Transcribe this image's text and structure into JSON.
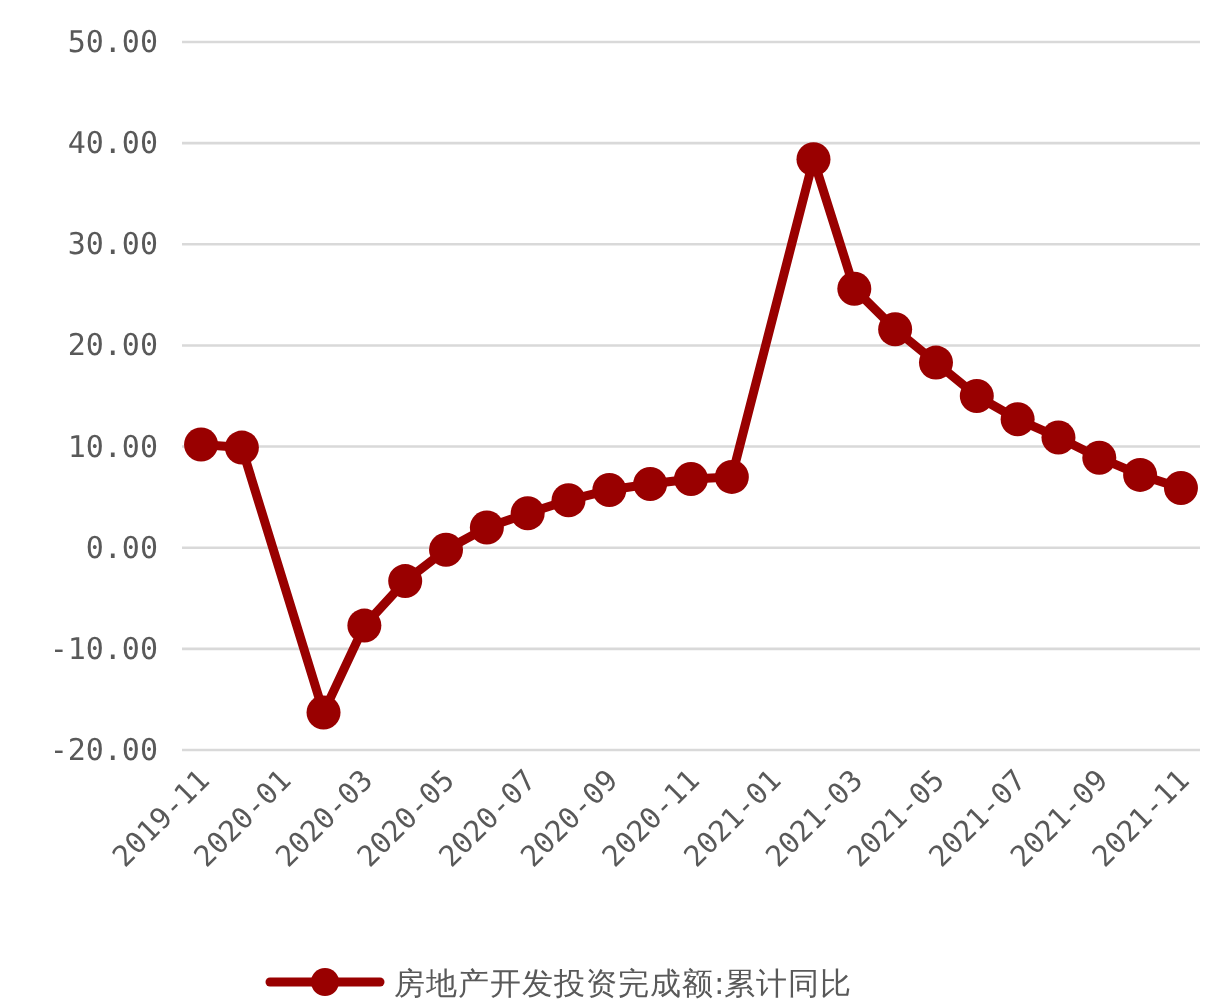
{
  "chart_data": {
    "type": "line",
    "x": [
      "2019-11",
      "2019-12",
      "2020-02",
      "2020-03",
      "2020-04",
      "2020-05",
      "2020-06",
      "2020-07",
      "2020-08",
      "2020-09",
      "2020-10",
      "2020-11",
      "2020-12",
      "2021-02",
      "2021-03",
      "2021-04",
      "2021-05",
      "2021-06",
      "2021-07",
      "2021-08",
      "2021-09",
      "2021-10",
      "2021-11"
    ],
    "series": [
      {
        "name": "房地产开发投资完成额:累计同比",
        "color": "#990000",
        "values": [
          10.2,
          9.9,
          -16.3,
          -7.7,
          -3.3,
          -0.2,
          2.0,
          3.4,
          4.7,
          5.7,
          6.3,
          6.8,
          7.0,
          38.4,
          25.6,
          21.6,
          18.3,
          15.0,
          12.7,
          10.9,
          8.9,
          7.2,
          5.9
        ]
      }
    ],
    "xlim": [
      "2019-10-17",
      "2021-11-15"
    ],
    "xticks": [
      "2019-11",
      "2020-01",
      "2020-03",
      "2020-05",
      "2020-07",
      "2020-09",
      "2020-11",
      "2021-01",
      "2021-03",
      "2021-05",
      "2021-07",
      "2021-09",
      "2021-11"
    ],
    "ylim": [
      -20,
      50
    ],
    "yticks": [
      {
        "value": -20,
        "label": "-20.00"
      },
      {
        "value": -10,
        "label": "-10.00"
      },
      {
        "value": 0,
        "label": "0.00"
      },
      {
        "value": 10,
        "label": "10.00"
      },
      {
        "value": 20,
        "label": "20.00"
      },
      {
        "value": 30,
        "label": "30.00"
      },
      {
        "value": 40,
        "label": "40.00"
      },
      {
        "value": 50,
        "label": "50.00"
      }
    ],
    "grid": "y",
    "legend": "bottom",
    "marker": "circle",
    "line_style": "solid"
  }
}
